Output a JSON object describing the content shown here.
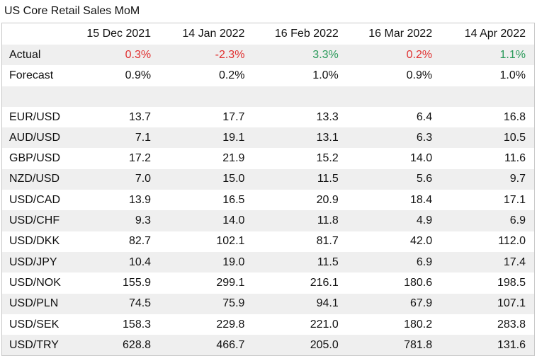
{
  "title": "US Core Retail Sales MoM",
  "columns": [
    "15 Dec 2021",
    "14 Jan 2022",
    "16 Feb 2022",
    "16 Mar 2022",
    "14 Apr 2022"
  ],
  "actual": {
    "label": "Actual",
    "values": [
      "0.3%",
      "-2.3%",
      "3.3%",
      "0.2%",
      "1.1%"
    ],
    "colors": [
      "neg",
      "neg",
      "pos",
      "neg",
      "pos"
    ]
  },
  "forecast": {
    "label": "Forecast",
    "values": [
      "0.9%",
      "0.2%",
      "1.0%",
      "0.9%",
      "1.0%"
    ]
  },
  "pairs": [
    {
      "label": "EUR/USD",
      "values": [
        "13.7",
        "17.7",
        "13.3",
        "6.4",
        "16.8"
      ]
    },
    {
      "label": "AUD/USD",
      "values": [
        "7.1",
        "19.1",
        "13.1",
        "6.3",
        "10.5"
      ]
    },
    {
      "label": "GBP/USD",
      "values": [
        "17.2",
        "21.9",
        "15.2",
        "14.0",
        "11.6"
      ]
    },
    {
      "label": "NZD/USD",
      "values": [
        "7.0",
        "15.0",
        "11.5",
        "5.6",
        "9.7"
      ]
    },
    {
      "label": "USD/CAD",
      "values": [
        "13.9",
        "16.5",
        "20.9",
        "18.4",
        "17.1"
      ]
    },
    {
      "label": "USD/CHF",
      "values": [
        "9.3",
        "14.0",
        "11.8",
        "4.9",
        "6.9"
      ]
    },
    {
      "label": "USD/DKK",
      "values": [
        "82.7",
        "102.1",
        "81.7",
        "42.0",
        "112.0"
      ]
    },
    {
      "label": "USD/JPY",
      "values": [
        "10.4",
        "19.0",
        "11.5",
        "6.9",
        "17.4"
      ]
    },
    {
      "label": "USD/NOK",
      "values": [
        "155.9",
        "299.1",
        "216.1",
        "180.6",
        "198.5"
      ]
    },
    {
      "label": "USD/PLN",
      "values": [
        "74.5",
        "75.9",
        "94.1",
        "67.9",
        "107.1"
      ]
    },
    {
      "label": "USD/SEK",
      "values": [
        "158.3",
        "229.8",
        "221.0",
        "180.2",
        "283.8"
      ]
    },
    {
      "label": "USD/TRY",
      "values": [
        "628.8",
        "466.7",
        "205.0",
        "781.8",
        "131.6"
      ]
    }
  ]
}
